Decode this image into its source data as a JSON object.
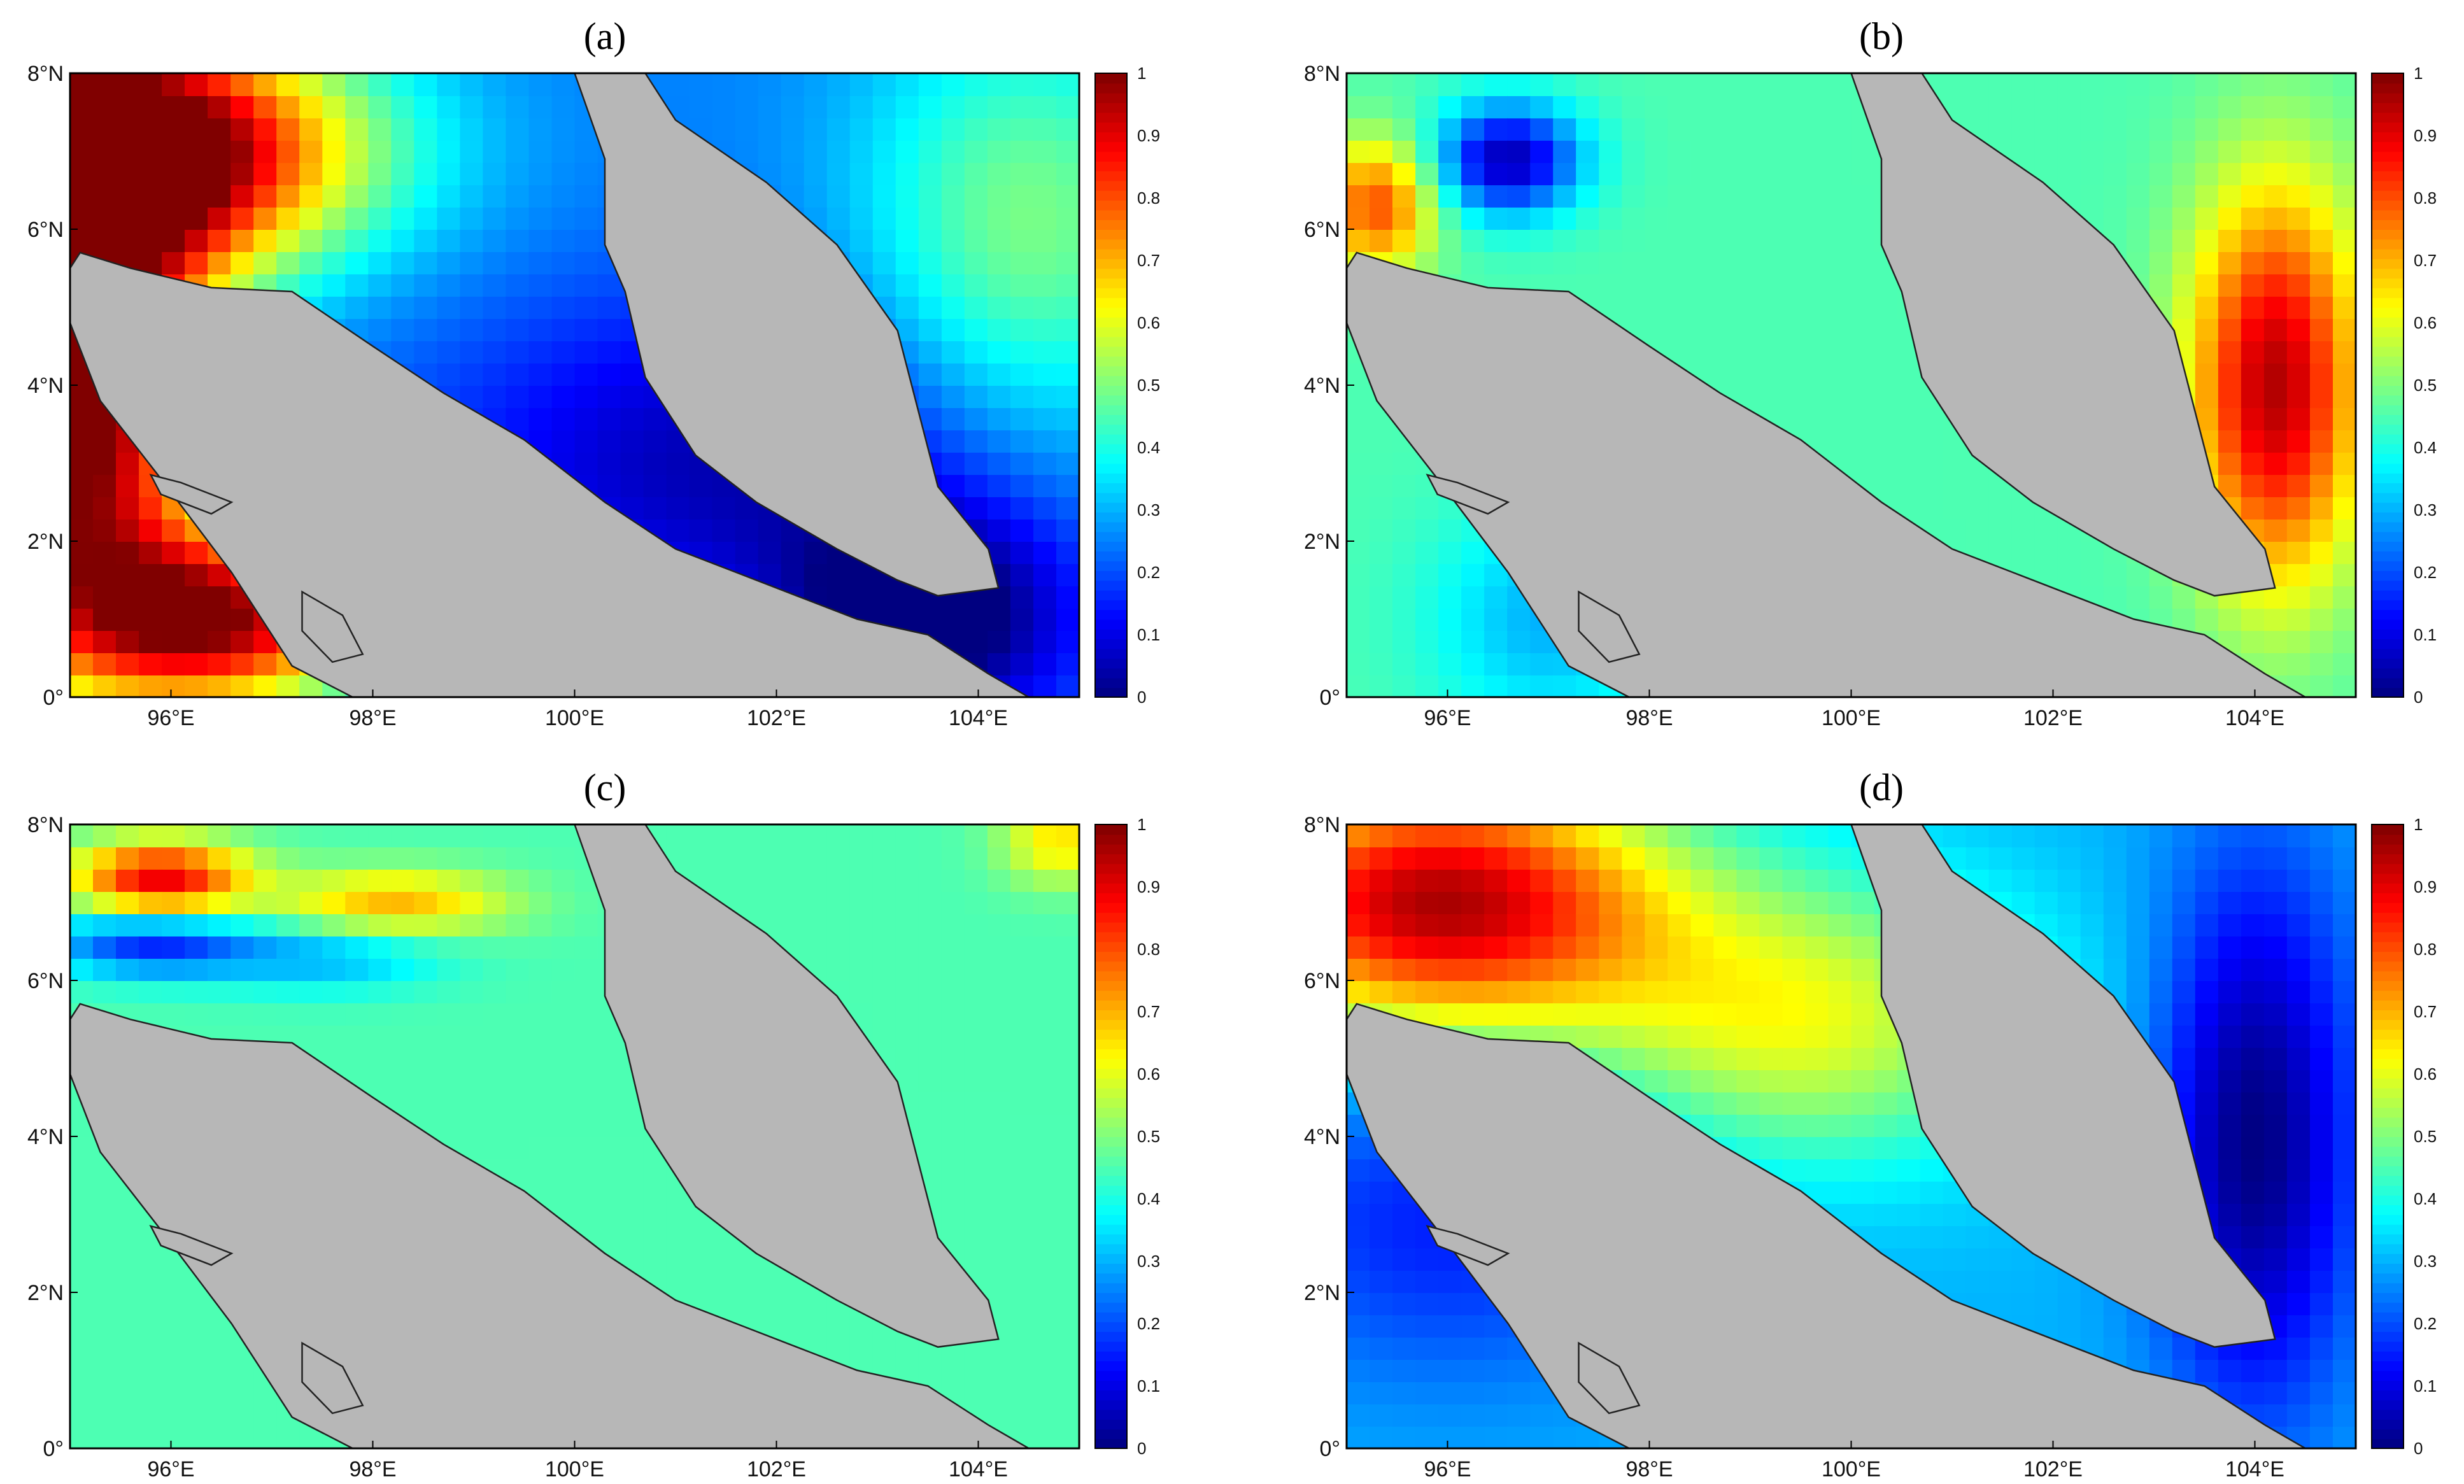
{
  "panels": [
    {
      "id": "a",
      "label": "(a)",
      "pattern": "a"
    },
    {
      "id": "b",
      "label": "(b)",
      "pattern": "b"
    },
    {
      "id": "c",
      "label": "(c)",
      "pattern": "c"
    },
    {
      "id": "d",
      "label": "(d)",
      "pattern": "d"
    }
  ],
  "axes": {
    "lon_ticks": [
      "96°E",
      "98°E",
      "100°E",
      "102°E",
      "104°E"
    ],
    "lon_values": [
      96,
      98,
      100,
      102,
      104
    ],
    "lat_ticks": [
      "0°",
      "2°N",
      "4°N",
      "6°N",
      "8°N"
    ],
    "lat_values": [
      0,
      2,
      4,
      6,
      8
    ],
    "lon_range": [
      95,
      105
    ],
    "lat_range": [
      0,
      8
    ]
  },
  "colorbar": {
    "ticks": [
      "0",
      "0.1",
      "0.2",
      "0.3",
      "0.4",
      "0.5",
      "0.6",
      "0.7",
      "0.8",
      "0.9",
      "1"
    ],
    "range": [
      0,
      1
    ],
    "colormap": "jet"
  },
  "colors": {
    "land": "#b7b7b7",
    "coast": "#222222"
  }
}
